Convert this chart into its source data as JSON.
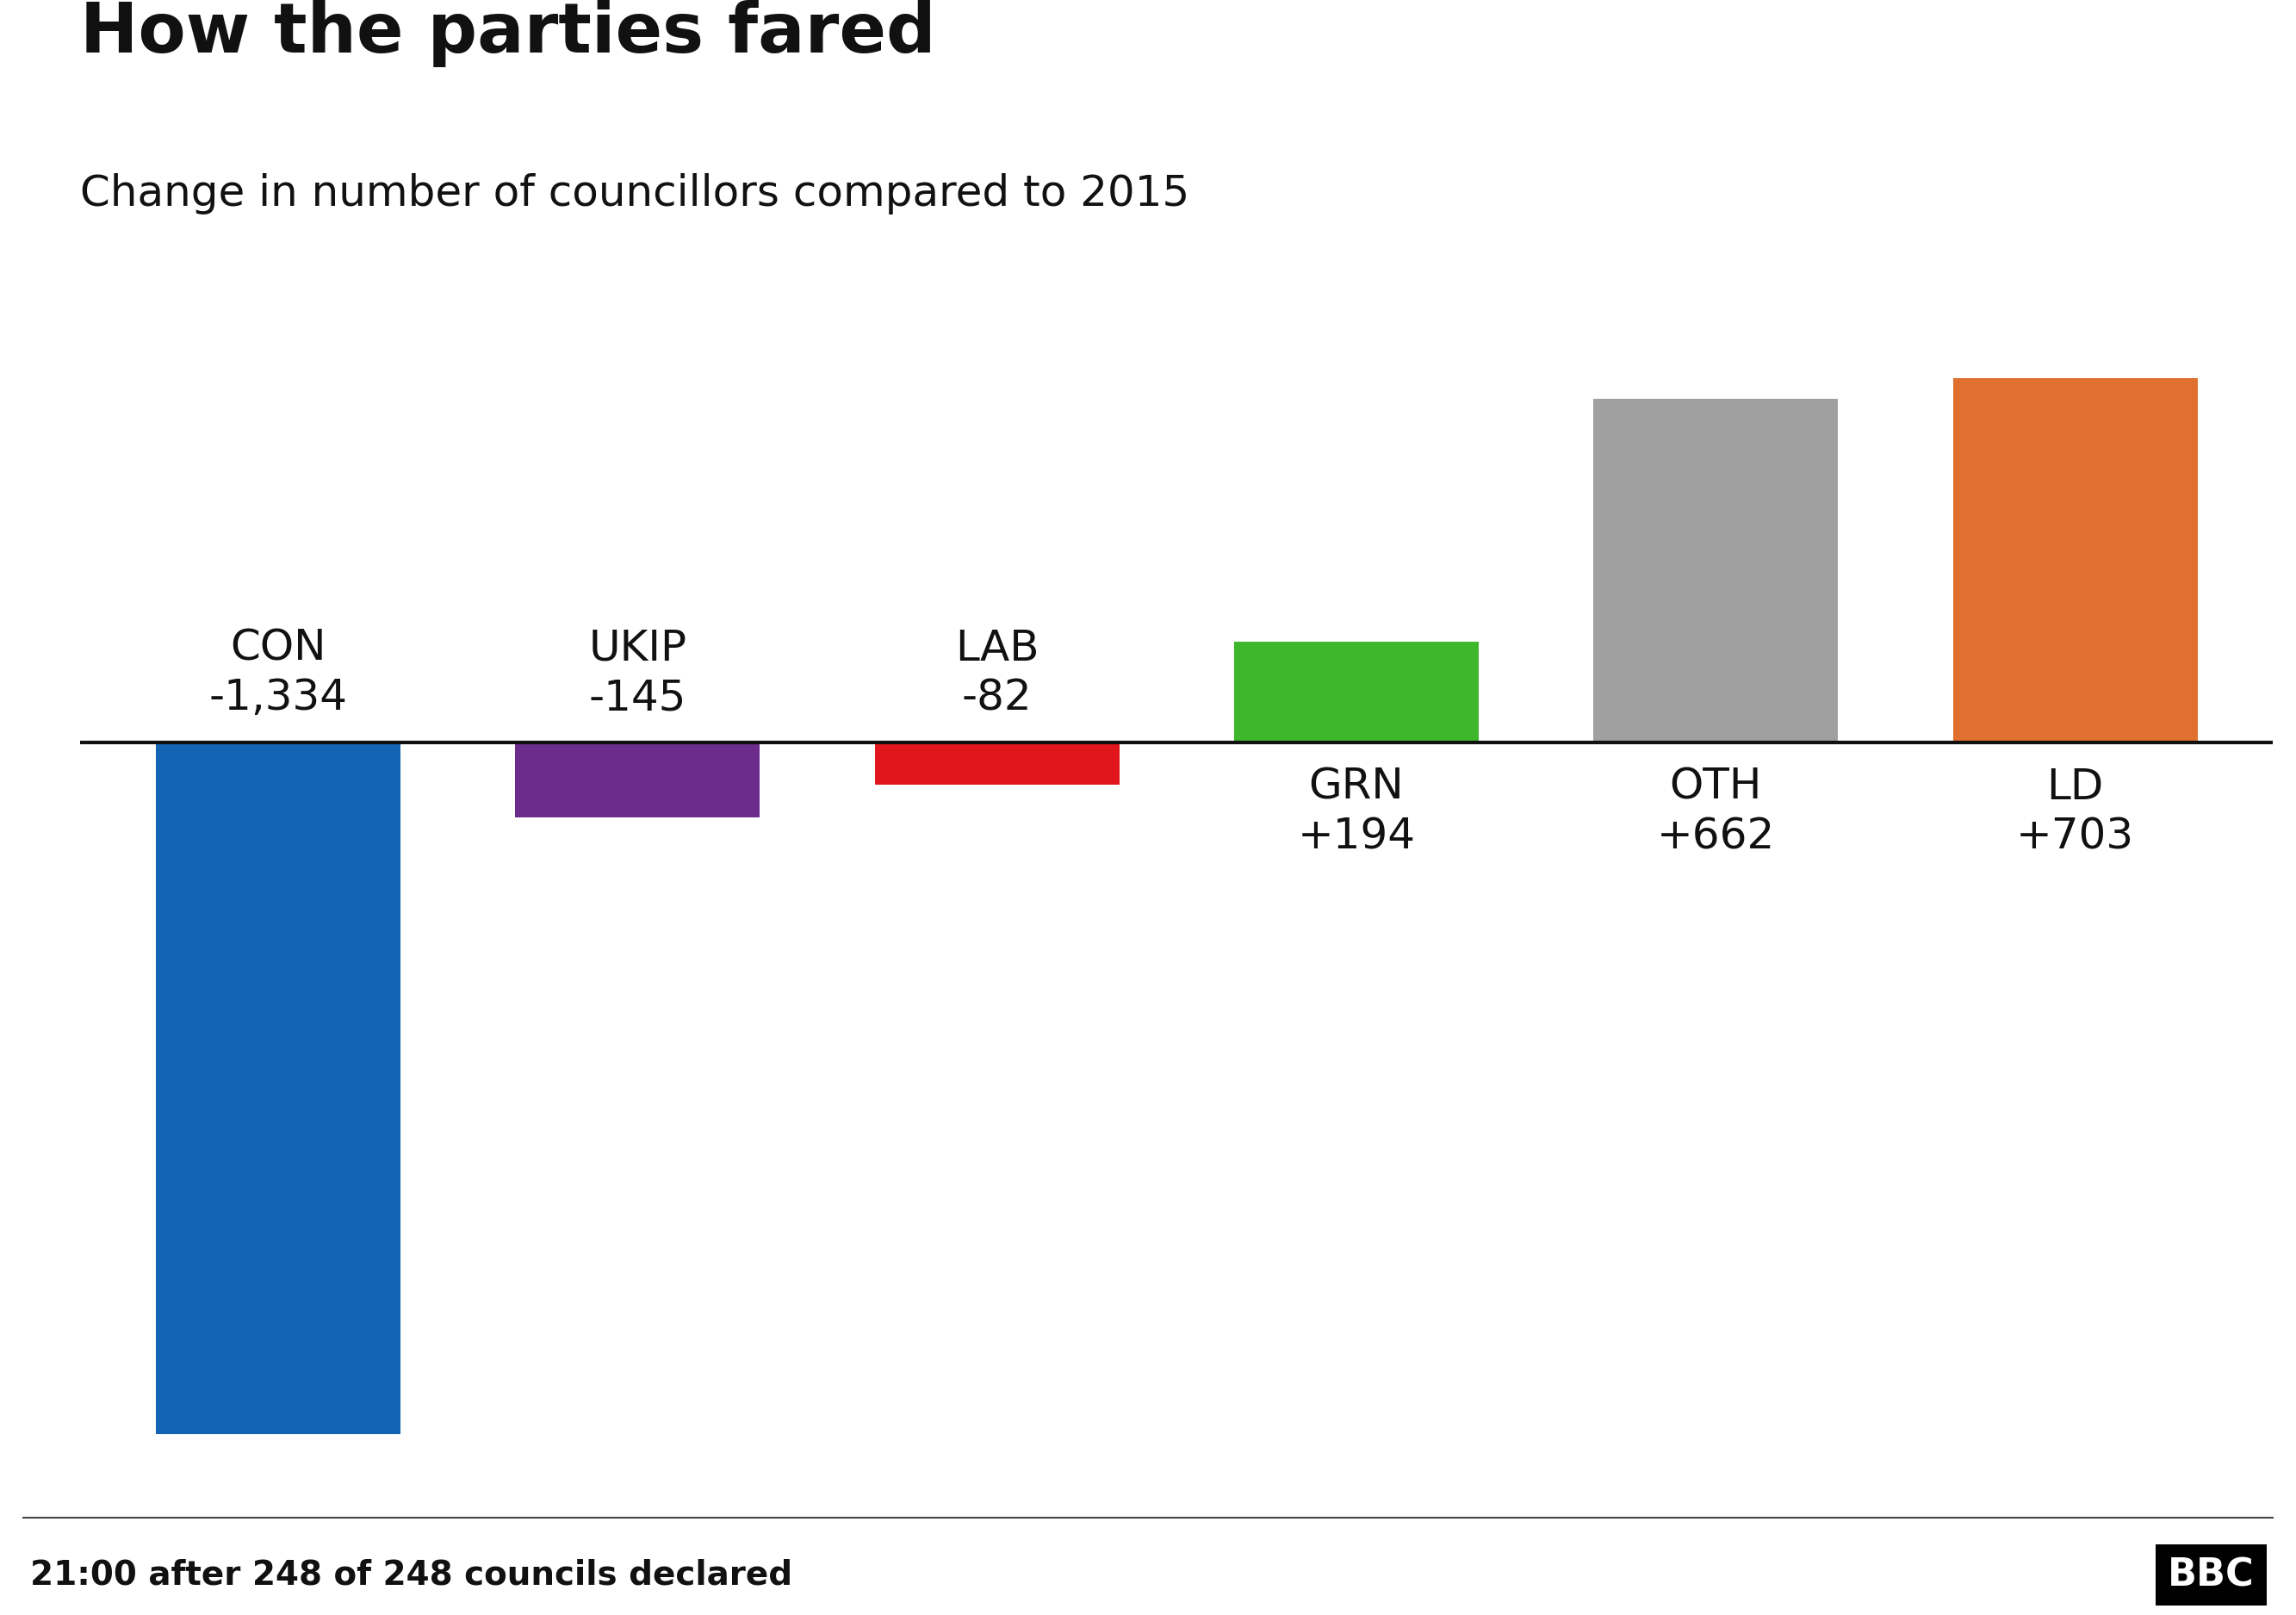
{
  "title": "How the parties fared",
  "subtitle": "Change in number of councillors compared to 2015",
  "footer": "21:00 after 248 of 248 councils declared",
  "bbc_logo": "BBC",
  "parties": [
    "CON",
    "UKIP",
    "LAB",
    "GRN",
    "OTH",
    "LD"
  ],
  "values": [
    -1334,
    -145,
    -82,
    194,
    662,
    703
  ],
  "labels_neg": [
    "CON\n-1,334",
    "UKIP\n-145",
    "LAB\n-82"
  ],
  "labels_pos": [
    "GRN\n+194",
    "OTH\n+662",
    "LD\n+703"
  ],
  "colors": [
    "#1464b4",
    "#6b2c8c",
    "#e0161c",
    "#3eb72c",
    "#a0a0a0",
    "#e07030"
  ],
  "background_color": "#ffffff",
  "title_fontsize": 58,
  "subtitle_fontsize": 36,
  "label_fontsize": 36,
  "footer_fontsize": 28,
  "bar_width": 0.68,
  "ylim_min": -1480,
  "ylim_max": 840
}
